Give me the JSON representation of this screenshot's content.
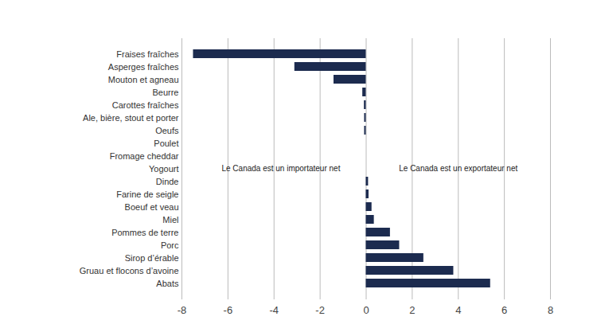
{
  "chart_data": {
    "type": "bar",
    "orientation": "horizontal",
    "categories": [
      "Fraises fraîches",
      "Asperges fraîches",
      "Mouton et agneau",
      "Beurre",
      "Carottes fraîches",
      "Ale, bière, stout et porter",
      "Oeufs",
      "Poulet",
      "Fromage cheddar",
      "Yogourt",
      "Dinde",
      "Farine de seigle",
      "Boeuf et veau",
      "Miel",
      "Pommes de terre",
      "Porc",
      "Sirop d’érable",
      "Gruau et flocons d’avoine",
      "Abats"
    ],
    "values": [
      -7.5,
      -3.1,
      -1.4,
      -0.15,
      -0.08,
      -0.07,
      -0.07,
      0,
      0,
      0,
      0.1,
      0.12,
      0.25,
      0.35,
      1.05,
      1.45,
      2.5,
      3.8,
      5.4
    ],
    "color": "#1c2b4f",
    "xlim": [
      -8,
      8
    ],
    "xticks": [
      -8,
      -6,
      -4,
      -2,
      0,
      2,
      4,
      6,
      8
    ],
    "grid": true,
    "annotations": [
      {
        "text": "Le Canada est un importateur net",
        "x": -3.7,
        "y": "Yogourt"
      },
      {
        "text": "Le Canada est un exportateur net",
        "x": 4,
        "y": "Yogourt"
      }
    ]
  }
}
